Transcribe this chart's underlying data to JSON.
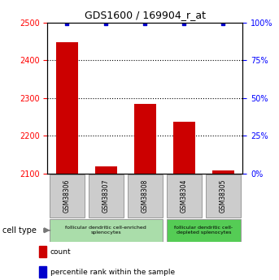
{
  "title": "GDS1600 / 169904_r_at",
  "samples": [
    "GSM38306",
    "GSM38307",
    "GSM38308",
    "GSM38304",
    "GSM38305"
  ],
  "counts": [
    2447,
    2120,
    2284,
    2237,
    2109
  ],
  "percentiles": [
    99,
    99,
    99,
    99,
    99
  ],
  "ylim_left": [
    2100,
    2500
  ],
  "ylim_right": [
    0,
    100
  ],
  "yticks_left": [
    2100,
    2200,
    2300,
    2400,
    2500
  ],
  "yticks_right": [
    0,
    25,
    50,
    75,
    100
  ],
  "bar_color": "#cc0000",
  "dot_color": "#0000cc",
  "bar_width": 0.55,
  "sample_box_color": "#cccccc",
  "cell_type_groups": [
    {
      "label": "follicular dendritic cell-enriched\nsplenocytes",
      "start": 0,
      "end": 2,
      "color": "#aaddaa"
    },
    {
      "label": "follicular dendritic cell-\ndepleted splenocytes",
      "start": 3,
      "end": 4,
      "color": "#55cc55"
    }
  ],
  "legend_items": [
    {
      "color": "#cc0000",
      "label": "count"
    },
    {
      "color": "#0000cc",
      "label": "percentile rank within the sample"
    }
  ],
  "figsize": [
    3.43,
    3.45
  ],
  "dpi": 100
}
